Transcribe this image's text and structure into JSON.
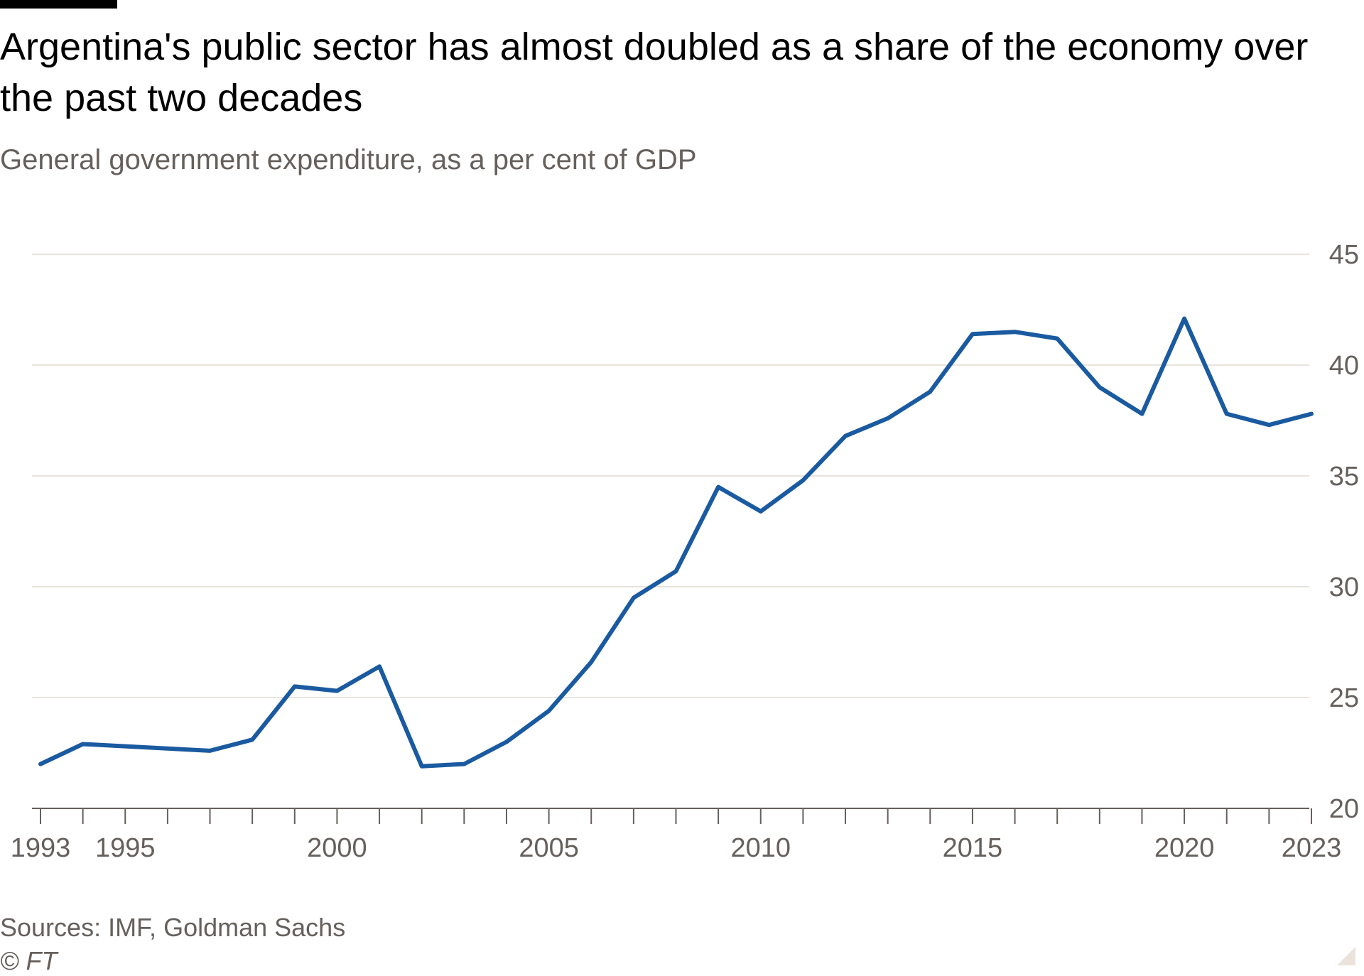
{
  "header": {
    "title": "Argentina's public sector has almost doubled as a share of the economy over the past two decades",
    "subtitle": "General government expenditure, as a per cent of GDP"
  },
  "footer": {
    "source": "Sources: IMF, Goldman Sachs",
    "credit": "© FT"
  },
  "colors": {
    "line": "#1a5aa0",
    "grid": "#e9e3dc",
    "axis": "#66605c"
  },
  "chart_data": {
    "type": "line",
    "title": "Argentina's public sector has almost doubled as a share of the economy over the past two decades",
    "subtitle": "General government expenditure, as a per cent of GDP",
    "xlabel": "",
    "ylabel": "",
    "x": [
      1993,
      1994,
      1995,
      1996,
      1997,
      1998,
      1999,
      2000,
      2001,
      2002,
      2003,
      2004,
      2005,
      2006,
      2007,
      2008,
      2009,
      2010,
      2011,
      2012,
      2013,
      2014,
      2015,
      2016,
      2017,
      2018,
      2019,
      2020,
      2021,
      2022,
      2023
    ],
    "series": [
      {
        "values": [
          22.0,
          22.9,
          22.8,
          22.7,
          22.6,
          23.1,
          25.5,
          25.3,
          26.4,
          21.9,
          22.0,
          23.0,
          24.4,
          26.6,
          29.5,
          30.7,
          34.5,
          33.4,
          34.8,
          36.8,
          37.6,
          38.8,
          41.4,
          41.5,
          41.2,
          39.0,
          37.8,
          42.1,
          37.8,
          37.3,
          37.8
        ]
      }
    ],
    "xticks": [
      1993,
      1995,
      2000,
      2005,
      2010,
      2015,
      2020,
      2023
    ],
    "yticks": [
      20,
      25,
      30,
      35,
      40,
      45
    ],
    "xlim": [
      1993,
      2023
    ],
    "ylim": [
      20,
      45
    ],
    "y_axis_side": "right",
    "grid": true
  }
}
